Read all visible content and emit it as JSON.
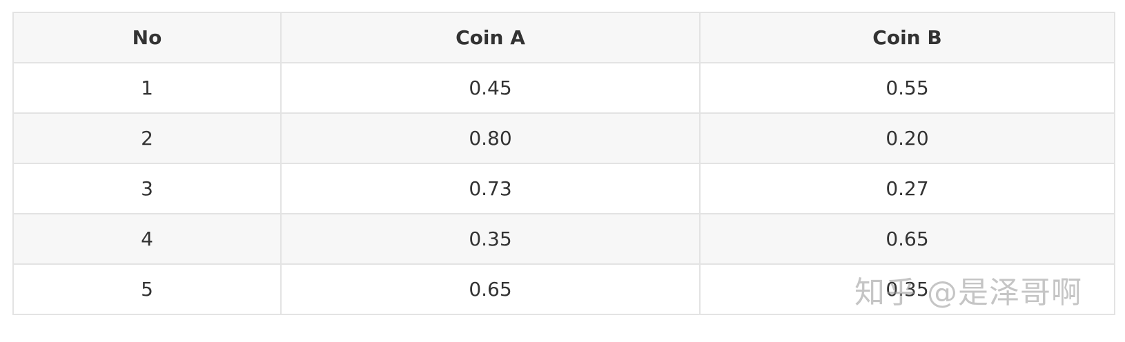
{
  "table": {
    "headers": [
      "No",
      "Coin A",
      "Coin B"
    ],
    "rows": [
      [
        "1",
        "0.45",
        "0.55"
      ],
      [
        "2",
        "0.80",
        "0.20"
      ],
      [
        "3",
        "0.73",
        "0.27"
      ],
      [
        "4",
        "0.35",
        "0.65"
      ],
      [
        "5",
        "0.65",
        "0.35"
      ]
    ]
  },
  "watermark": {
    "text": "知乎 @是泽哥啊"
  }
}
